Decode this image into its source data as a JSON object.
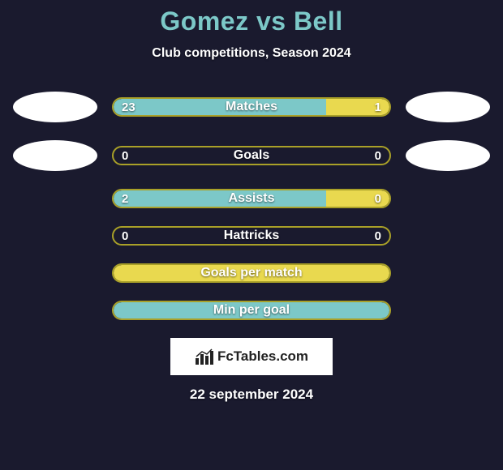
{
  "title": "Gomez vs Bell",
  "subtitle": "Club competitions, Season 2024",
  "colors": {
    "background": "#1a1a2e",
    "title": "#7cc8c8",
    "bar_border": "#a9a028",
    "left_fill": "#7cc8c8",
    "right_fill": "#e9d94f",
    "avatar": "#ffffff"
  },
  "rows": [
    {
      "label": "Matches",
      "left_val": "23",
      "right_val": "1",
      "left_pct": 77,
      "right_pct": 23,
      "show_avatars": true
    },
    {
      "label": "Goals",
      "left_val": "0",
      "right_val": "0",
      "left_pct": 0,
      "right_pct": 0,
      "show_avatars": true
    },
    {
      "label": "Assists",
      "left_val": "2",
      "right_val": "0",
      "left_pct": 77,
      "right_pct": 23,
      "show_avatars": false
    },
    {
      "label": "Hattricks",
      "left_val": "0",
      "right_val": "0",
      "left_pct": 0,
      "right_pct": 0,
      "show_avatars": false
    },
    {
      "label": "Goals per match",
      "left_val": "",
      "right_val": "",
      "left_pct": 100,
      "right_pct": 0,
      "show_avatars": false,
      "full_yellow": true
    },
    {
      "label": "Min per goal",
      "left_val": "",
      "right_val": "",
      "left_pct": 0,
      "right_pct": 0,
      "show_avatars": false,
      "full_teal": true
    }
  ],
  "brand": "FcTables.com",
  "date": "22 september 2024"
}
